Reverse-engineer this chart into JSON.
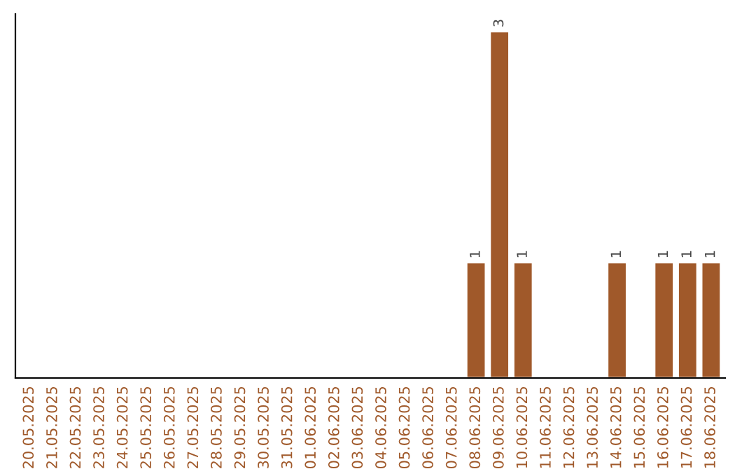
{
  "chart_data": {
    "type": "bar",
    "categories": [
      "20.05.2025",
      "21.05.2025",
      "22.05.2025",
      "23.05.2025",
      "24.05.2025",
      "25.05.2025",
      "26.05.2025",
      "27.05.2025",
      "28.05.2025",
      "29.05.2025",
      "30.05.2025",
      "31.05.2025",
      "01.06.2025",
      "02.06.2025",
      "03.06.2025",
      "04.06.2025",
      "05.06.2025",
      "06.06.2025",
      "07.06.2025",
      "08.06.2025",
      "09.06.2025",
      "10.06.2025",
      "11.06.2025",
      "12.06.2025",
      "13.06.2025",
      "14.06.2025",
      "15.06.2025",
      "16.06.2025",
      "17.06.2025",
      "18.06.2025"
    ],
    "values": [
      null,
      null,
      null,
      null,
      null,
      null,
      null,
      null,
      null,
      null,
      null,
      null,
      null,
      null,
      null,
      null,
      null,
      null,
      null,
      1,
      3,
      1,
      null,
      null,
      null,
      1,
      null,
      1,
      1,
      1
    ],
    "value_labels": [
      null,
      null,
      null,
      null,
      null,
      null,
      null,
      null,
      null,
      null,
      null,
      null,
      null,
      null,
      null,
      null,
      null,
      null,
      null,
      "1",
      "3",
      "1",
      null,
      null,
      null,
      "1",
      null,
      "1",
      "1",
      "1"
    ],
    "color": "#a0592a",
    "data_labels": true,
    "tick_labels": "x",
    "grid": false,
    "legend": false
  }
}
